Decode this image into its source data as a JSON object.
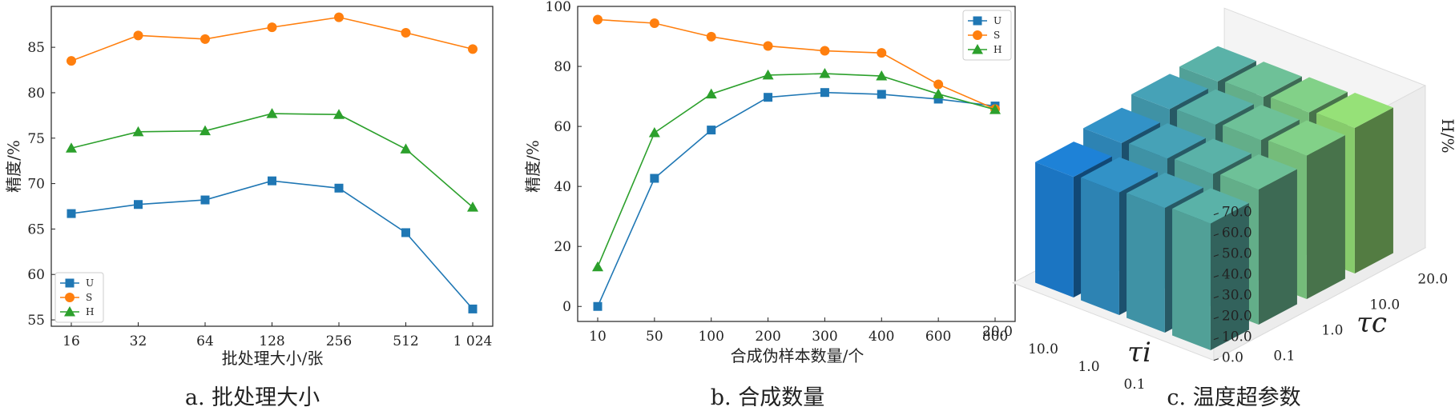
{
  "captions": [
    "a. 批处理大小",
    "b. 合成数量",
    "c. 温度超参数"
  ],
  "colors": {
    "U": "#1f77b4",
    "S": "#ff7f0e",
    "H": "#2ca02c"
  },
  "chart_data": [
    {
      "type": "line",
      "xlabel": "批处理大小/张",
      "ylabel": "精度/%",
      "categories": [
        "16",
        "32",
        "64",
        "128",
        "256",
        "512",
        "1 024"
      ],
      "yticks": [
        55,
        60,
        65,
        70,
        75,
        80,
        85
      ],
      "ylim": [
        54.3,
        89.5
      ],
      "legend": "lower-left",
      "series": [
        {
          "name": "U",
          "marker": "square",
          "values": [
            66.7,
            67.7,
            68.2,
            70.3,
            69.5,
            64.6,
            56.2
          ]
        },
        {
          "name": "S",
          "marker": "circle",
          "values": [
            83.5,
            86.3,
            85.9,
            87.2,
            88.3,
            86.6,
            84.8
          ]
        },
        {
          "name": "H",
          "marker": "triangle",
          "values": [
            73.9,
            75.7,
            75.8,
            77.7,
            77.6,
            73.8,
            67.4
          ]
        }
      ]
    },
    {
      "type": "line",
      "xlabel": "合成伪样本数量/个",
      "ylabel": "精度/%",
      "categories": [
        "10",
        "50",
        "100",
        "200",
        "300",
        "400",
        "600",
        "800"
      ],
      "yticks": [
        0,
        20,
        40,
        60,
        80,
        100
      ],
      "ylim": [
        -5,
        100
      ],
      "legend": "top-right",
      "series": [
        {
          "name": "U",
          "marker": "square",
          "values": [
            0,
            42.7,
            58.8,
            69.7,
            71.3,
            70.7,
            69.1,
            66.8
          ]
        },
        {
          "name": "S",
          "marker": "circle",
          "values": [
            95.6,
            94.4,
            89.9,
            86.8,
            85.2,
            84.5,
            74.0,
            65.8
          ]
        },
        {
          "name": "H",
          "marker": "triangle",
          "values": [
            13.2,
            57.9,
            70.8,
            77.1,
            77.6,
            76.8,
            70.8,
            65.6
          ]
        }
      ]
    },
    {
      "type": "bar3d",
      "xlabel": "τi",
      "ylabel": "τc",
      "zlabel": "H/%",
      "x_categories": [
        "20.0",
        "10.0",
        "1.0",
        "0.1"
      ],
      "y_categories": [
        "0.1",
        "1.0",
        "10.0",
        "20.0"
      ],
      "zticks": [
        "0.0",
        "10.0",
        "20.0",
        "30.0",
        "40.0",
        "50.0",
        "60.0",
        "70.0"
      ],
      "zlim": [
        0,
        78
      ],
      "values": [
        [
          58,
          62,
          66,
          67
        ],
        [
          59,
          63,
          67,
          68
        ],
        [
          60,
          64,
          68,
          69
        ],
        [
          61,
          65,
          69,
          70
        ]
      ]
    }
  ]
}
